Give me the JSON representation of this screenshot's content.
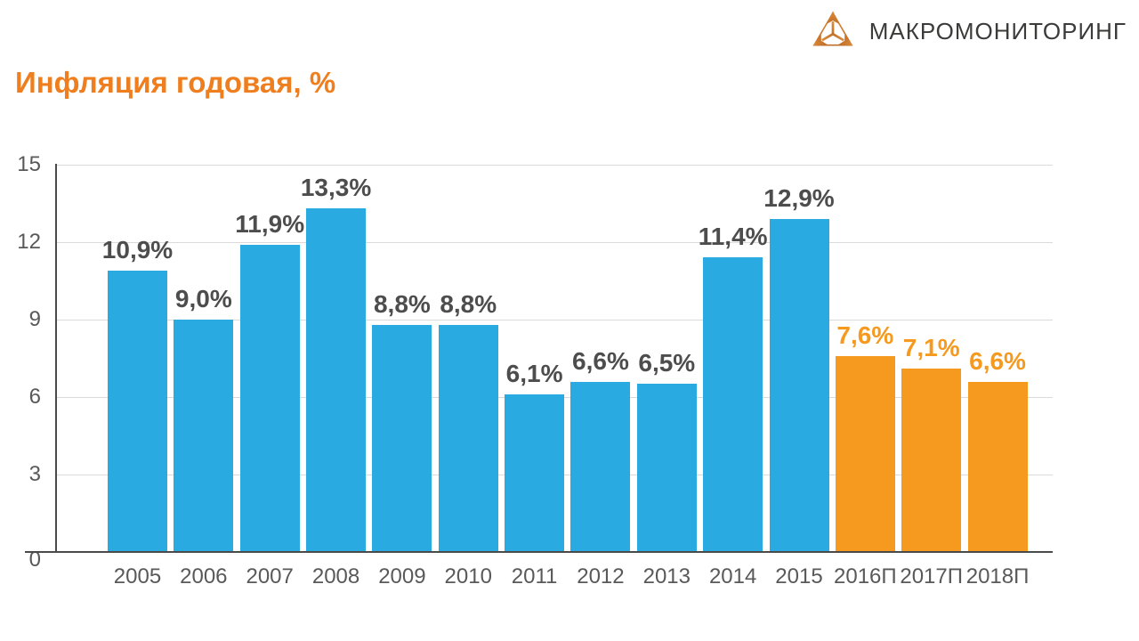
{
  "logo": {
    "text": "МАКРОМОНИТОРИНГ",
    "icon": "triangle-arrows-icon",
    "icon_color": "#d0792c",
    "text_color": "#3b3b3a"
  },
  "title": {
    "text": "Инфляция годовая, %",
    "color": "#ef7e1e"
  },
  "chart_data": {
    "type": "bar",
    "title": "Инфляция годовая, %",
    "categories": [
      "2005",
      "2006",
      "2007",
      "2008",
      "2009",
      "2010",
      "2011",
      "2012",
      "2013",
      "2014",
      "2015",
      "2016П",
      "2017П",
      "2018П"
    ],
    "values": [
      10.9,
      9.0,
      11.9,
      13.3,
      8.8,
      8.8,
      6.1,
      6.6,
      6.5,
      11.4,
      12.9,
      7.6,
      7.1,
      6.6
    ],
    "value_labels": [
      "10,9%",
      "9,0%",
      "11,9%",
      "13,3%",
      "8,8%",
      "8,8%",
      "6,1%",
      "6,6%",
      "6,5%",
      "11,4%",
      "12,9%",
      "7,6%",
      "7,1%",
      "6,6%"
    ],
    "xlabel": "",
    "ylabel": "",
    "ylim": [
      0,
      15
    ],
    "yticks": [
      0,
      3,
      6,
      9,
      12,
      15
    ],
    "grid": true,
    "legend": "none",
    "forecast_start_index": 11,
    "colors": {
      "bar_actual": "#29abe2",
      "bar_forecast": "#f59a1f",
      "value_label_actual": "#4d4d4d",
      "value_label_forecast": "#f59a1f",
      "axis": "#4a4a4a",
      "grid": "#dadada",
      "tick_text": "#595959"
    }
  }
}
